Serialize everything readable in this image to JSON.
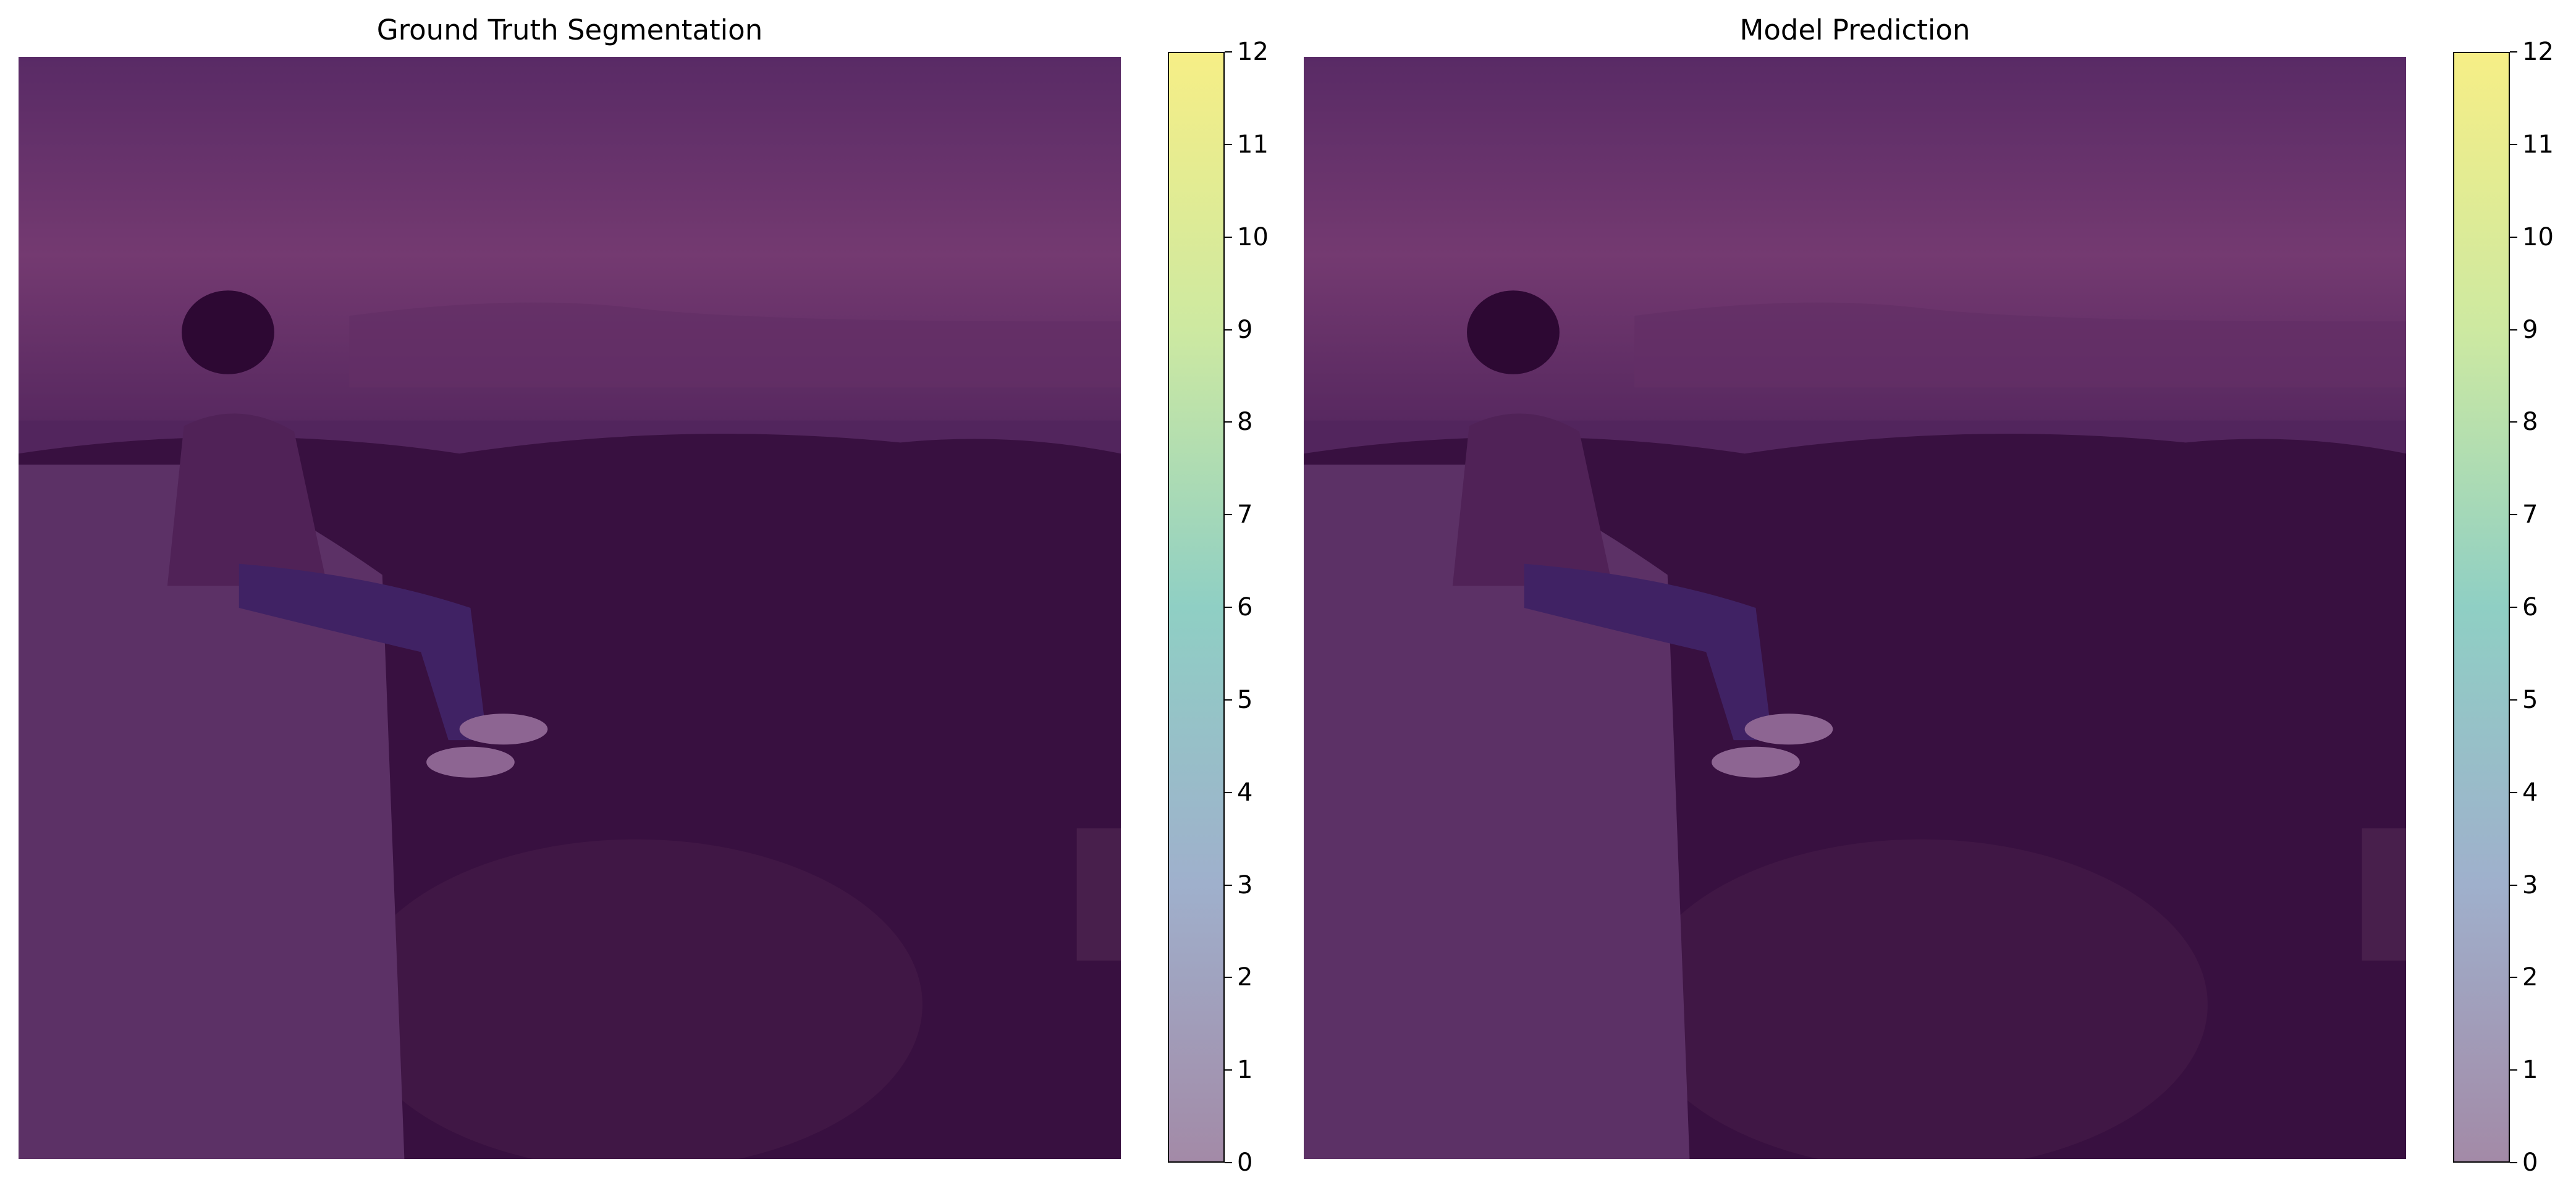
{
  "chart_data": [
    {
      "type": "heatmap",
      "title": "Ground Truth Segmentation",
      "colormap": "viridis",
      "overlay_alpha": 0.5,
      "colorbar_range": [
        0,
        12
      ],
      "colorbar_ticks": [
        "0",
        "1",
        "2",
        "3",
        "4",
        "5",
        "6",
        "7",
        "8",
        "9",
        "10",
        "11",
        "12"
      ],
      "dominant_class": 0,
      "grid": false
    },
    {
      "type": "heatmap",
      "title": "Model Prediction",
      "colormap": "viridis",
      "overlay_alpha": 0.5,
      "colorbar_range": [
        0,
        12
      ],
      "colorbar_ticks": [
        "0",
        "1",
        "2",
        "3",
        "4",
        "5",
        "6",
        "7",
        "8",
        "9",
        "10",
        "11",
        "12"
      ],
      "dominant_class": 0,
      "grid": false
    }
  ],
  "colors": {
    "class0_overlay": "#44014f",
    "sky_top": "#6a4e78",
    "sky_mid": "#9b6a8c",
    "horizon": "#5e4468",
    "trees": "#2f1e33",
    "cliff": "#6f5a78",
    "shirt": "#5a3f5e",
    "jeans": "#3c3f75",
    "shoes": "#c8b9c9"
  },
  "colorbar_gradient": [
    "#a38aa7",
    "#9fb0cc",
    "#8fcfc4",
    "#cde9a1",
    "#f6ee86"
  ]
}
